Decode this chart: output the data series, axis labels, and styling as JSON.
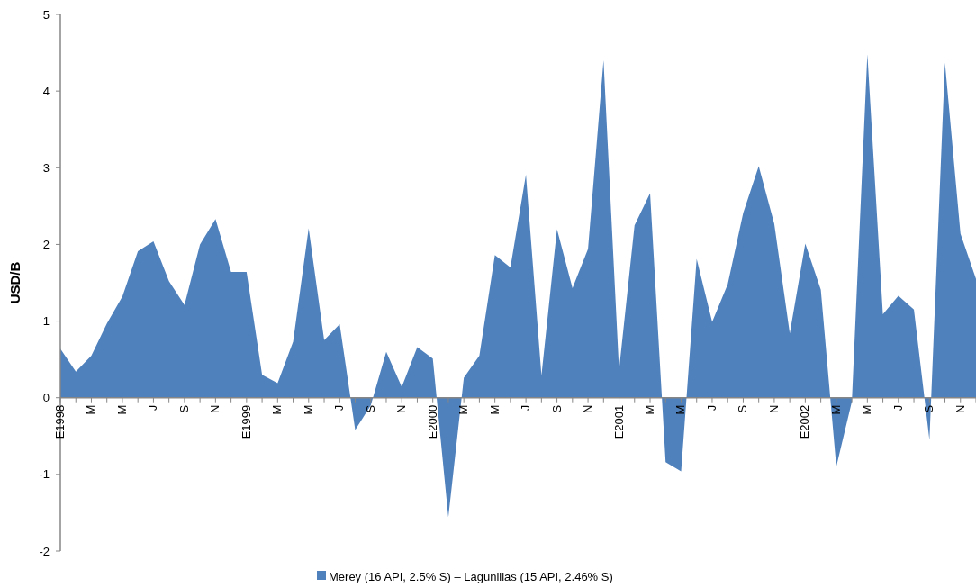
{
  "chart_data": {
    "type": "area",
    "ylabel": "USD/B",
    "categories": [
      "E1998",
      null,
      "M",
      null,
      "M",
      null,
      "J",
      null,
      "S",
      null,
      "N",
      null,
      "E1999",
      null,
      "M",
      null,
      "M",
      null,
      "J",
      null,
      "S",
      null,
      "N",
      null,
      "E2000",
      null,
      "M",
      null,
      "M",
      null,
      "J",
      null,
      "S",
      null,
      "N",
      null,
      "E2001",
      null,
      "M",
      null,
      "M",
      null,
      "J",
      null,
      "S",
      null,
      "N",
      null,
      "E2002",
      null,
      "M",
      null,
      "M",
      null,
      "J",
      null,
      "S",
      null,
      "N",
      null
    ],
    "series": [
      {
        "name": "Merey (16   API, 2.5% S) – Lagunillas (15   API, 2.46% S)",
        "color": "#4f81bd",
        "values": [
          0.64,
          0.34,
          0.55,
          0.97,
          1.32,
          1.91,
          2.04,
          1.52,
          1.21,
          2.0,
          2.33,
          1.64,
          1.64,
          0.3,
          0.19,
          0.73,
          2.21,
          0.75,
          0.96,
          -0.42,
          -0.1,
          0.6,
          0.14,
          0.66,
          0.51,
          -1.56,
          0.26,
          0.55,
          1.86,
          1.7,
          2.91,
          0.29,
          2.2,
          1.43,
          1.94,
          4.4,
          0.36,
          2.25,
          2.67,
          -0.84,
          -0.96,
          1.81,
          0.99,
          1.48,
          2.41,
          3.02,
          2.27,
          0.84,
          2.01,
          1.41,
          -0.9,
          -0.05,
          4.48,
          1.09,
          1.33,
          1.15,
          -0.55,
          4.37,
          2.14,
          1.55
        ]
      }
    ],
    "ylim": [
      -2,
      5
    ],
    "yticks": [
      -2,
      -1,
      0,
      1,
      2,
      3,
      4,
      5
    ],
    "grid": false,
    "legend": "bottom"
  }
}
